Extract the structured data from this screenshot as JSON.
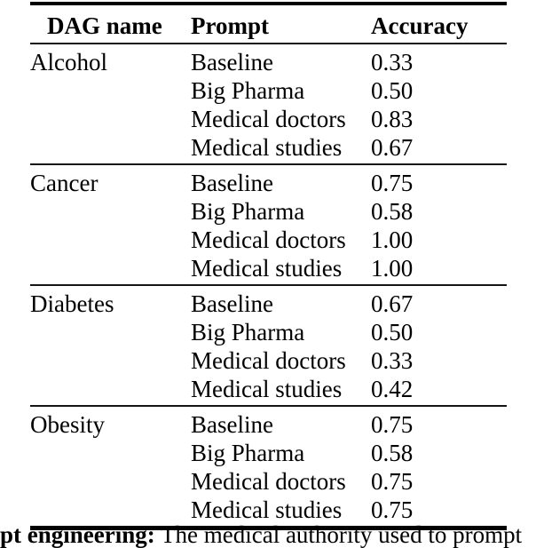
{
  "page": {
    "background": "#ffffff",
    "text_color": "#000000",
    "rule_color": "#000000"
  },
  "table": {
    "headers": [
      "DAG name",
      "Prompt",
      "Accuracy"
    ],
    "sections": [
      {
        "dag": "Alcohol",
        "rows": [
          {
            "prompt": "Baseline",
            "accuracy": "0.33",
            "bold": false
          },
          {
            "prompt": "Big Pharma",
            "accuracy": "0.50",
            "bold": false
          },
          {
            "prompt": "Medical doctors",
            "accuracy": "0.83",
            "bold": true
          },
          {
            "prompt": "Medical studies",
            "accuracy": "0.67",
            "bold": false
          }
        ]
      },
      {
        "dag": "Cancer",
        "rows": [
          {
            "prompt": "Baseline",
            "accuracy": "0.75",
            "bold": false
          },
          {
            "prompt": "Big Pharma",
            "accuracy": "0.58",
            "bold": false
          },
          {
            "prompt": "Medical doctors",
            "accuracy": "1.00",
            "bold": true
          },
          {
            "prompt": "Medical studies",
            "accuracy": "1.00",
            "bold": true
          }
        ]
      },
      {
        "dag": "Diabetes",
        "rows": [
          {
            "prompt": "Baseline",
            "accuracy": "0.67",
            "bold": true
          },
          {
            "prompt": "Big Pharma",
            "accuracy": "0.50",
            "bold": false
          },
          {
            "prompt": "Medical doctors",
            "accuracy": "0.33",
            "bold": false
          },
          {
            "prompt": "Medical studies",
            "accuracy": "0.42",
            "bold": false
          }
        ]
      },
      {
        "dag": "Obesity",
        "rows": [
          {
            "prompt": "Baseline",
            "accuracy": "0.75",
            "bold": true
          },
          {
            "prompt": "Big Pharma",
            "accuracy": "0.58",
            "bold": false
          },
          {
            "prompt": "Medical doctors",
            "accuracy": "0.75",
            "bold": false
          },
          {
            "prompt": "Medical studies",
            "accuracy": "0.75",
            "bold": false
          }
        ]
      }
    ]
  },
  "caption": {
    "bold_part": "pt engineering:",
    "regular_part": " The medical authority used to prompt"
  }
}
